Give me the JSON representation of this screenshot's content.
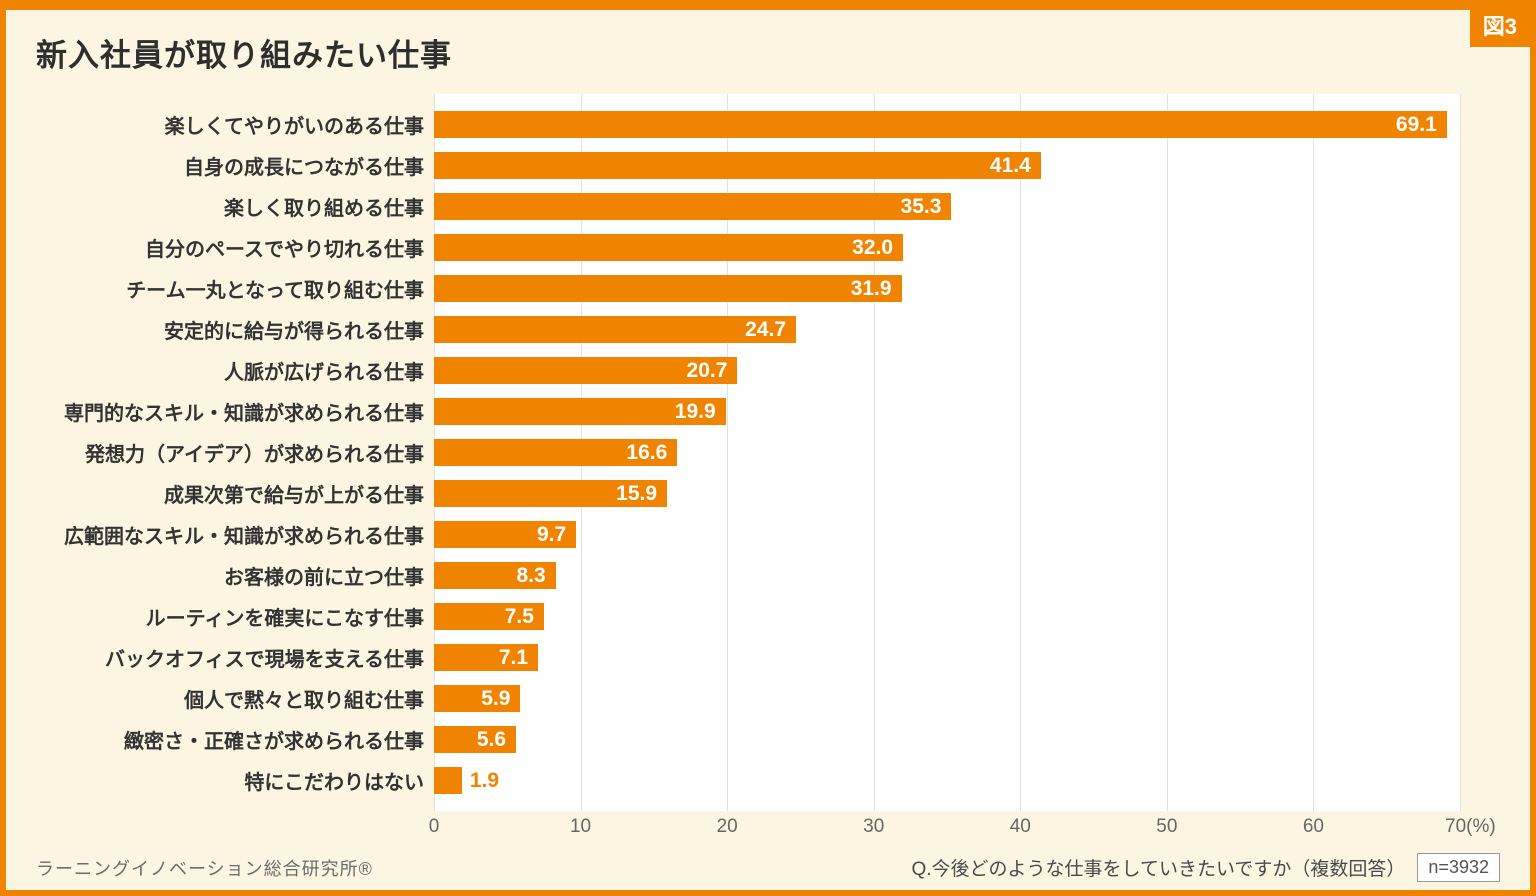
{
  "figure_label": "図3",
  "title": "新入社員が取り組みたい仕事",
  "colors": {
    "accent": "#F08300",
    "background": "#FCF5E2",
    "plot_background": "#FFFFFF",
    "gridline": "#E2E2E2"
  },
  "footer": {
    "source": "ラーニングイノベーション総合研究所®",
    "question": "Q.今後どのような仕事をしていきたいですか（複数回答）",
    "n": "n=3932"
  },
  "chart_data": {
    "type": "bar",
    "orientation": "horizontal",
    "title": "新入社員が取り組みたい仕事",
    "categories": [
      "楽しくてやりがいのある仕事",
      "自身の成長につながる仕事",
      "楽しく取り組める仕事",
      "自分のペースでやり切れる仕事",
      "チーム一丸となって取り組む仕事",
      "安定的に給与が得られる仕事",
      "人脈が広げられる仕事",
      "専門的なスキル・知識が求められる仕事",
      "発想力（アイデア）が求められる仕事",
      "成果次第で給与が上がる仕事",
      "広範囲なスキル・知識が求められる仕事",
      "お客様の前に立つ仕事",
      "ルーティンを確実にこなす仕事",
      "バックオフィスで現場を支える仕事",
      "個人で黙々と取り組む仕事",
      "緻密さ・正確さが求められる仕事",
      "特にこだわりはない"
    ],
    "values": [
      69.1,
      41.4,
      35.3,
      32.0,
      31.9,
      24.7,
      20.7,
      19.9,
      16.6,
      15.9,
      9.7,
      8.3,
      7.5,
      7.1,
      5.9,
      5.6,
      1.9
    ],
    "xlim": [
      0,
      70
    ],
    "ticks": [
      "0",
      "10",
      "20",
      "30",
      "40",
      "50",
      "60",
      "70(%)"
    ],
    "grid": true,
    "legend": "none",
    "bar_color": "#F08300",
    "value_label_inside_color": "#FFFFFF",
    "value_label_outside_color": "#F08300",
    "label_outside_threshold": 4
  }
}
